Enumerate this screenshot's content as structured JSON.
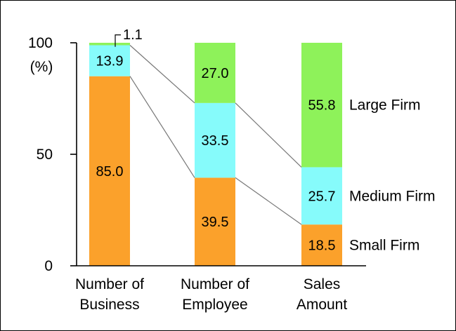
{
  "chart_data": {
    "type": "bar",
    "stacked": true,
    "normalized_percent": true,
    "categories": [
      [
        "Number of",
        "Business"
      ],
      [
        "Number of",
        "Employee"
      ],
      [
        "Sales",
        "Amount"
      ]
    ],
    "series": [
      {
        "name": "Small Firm",
        "values": [
          85.0,
          39.5,
          18.5
        ],
        "color": "#fba12b"
      },
      {
        "name": "Medium Firm",
        "values": [
          13.9,
          33.5,
          25.7
        ],
        "color": "#86fbfb"
      },
      {
        "name": "Large Firm",
        "values": [
          1.1,
          27.0,
          55.8
        ],
        "color": "#8ef25a"
      }
    ],
    "data_labels": [
      [
        "85.0",
        "39.5",
        "18.5"
      ],
      [
        "13.9",
        "33.5",
        "25.7"
      ],
      [
        "1.1",
        "27.0",
        "55.8"
      ]
    ],
    "y_ticks": [
      {
        "value": 0,
        "label": "0"
      },
      {
        "value": 50,
        "label": "50"
      },
      {
        "value": 100,
        "label": "100"
      }
    ],
    "ylabel": "(%)",
    "ylim": [
      0,
      100
    ],
    "grid": false,
    "legend": "right, labels beside the last bar",
    "connector_lines": true
  }
}
